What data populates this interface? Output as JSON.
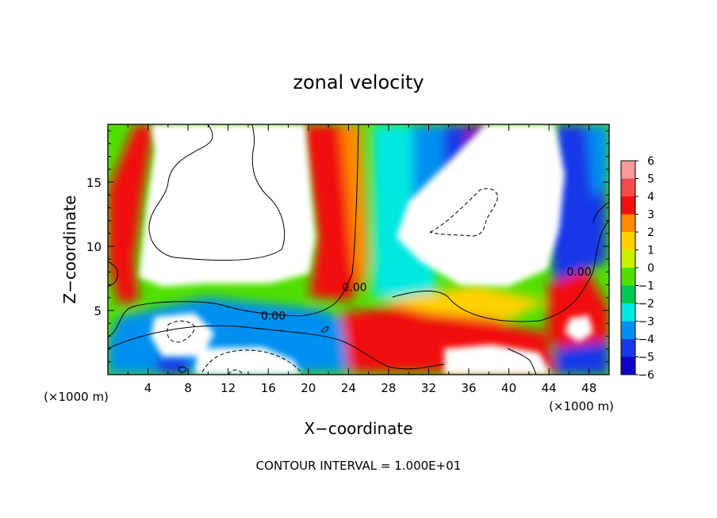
{
  "chart_data": {
    "type": "heatmap",
    "title": "zonal velocity",
    "xlabel": "X−coordinate",
    "ylabel": "Z−coordinate",
    "x_unit": "(×1000 m)",
    "y_unit": "(×1000 m)",
    "xlim": [
      0,
      50
    ],
    "ylim": [
      0,
      19.5
    ],
    "x_ticks": [
      4,
      8,
      12,
      16,
      20,
      24,
      28,
      32,
      36,
      40,
      44,
      48
    ],
    "y_ticks": [
      5,
      10,
      15
    ],
    "colorbar": {
      "levels": [
        "6",
        "5",
        "4",
        "3",
        "2",
        "1",
        "0",
        "−1",
        "−2",
        "−3",
        "−4",
        "−5",
        "−6"
      ],
      "colors": [
        "#f89a9a",
        "#f54a4a",
        "#f01010",
        "#ff8a00",
        "#ffd200",
        "#c8f000",
        "#50e000",
        "#00c850",
        "#00e8e0",
        "#0090f0",
        "#1838e8",
        "#1000c8",
        "#7a0ab8"
      ]
    },
    "contour_labels": [
      {
        "text": "0.00",
        "x": 16.5,
        "z": 4.3
      },
      {
        "text": "0.00",
        "x": 24.6,
        "z": 6.5
      },
      {
        "text": "0.00",
        "x": 47,
        "z": 7.7
      }
    ],
    "footer": "CONTOUR INTERVAL = 1.000E+01"
  }
}
